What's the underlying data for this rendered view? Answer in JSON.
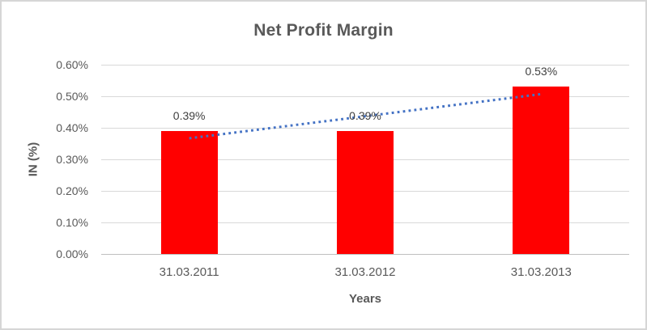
{
  "chart_data": {
    "type": "bar",
    "title": "Net Profit Margin",
    "xlabel": "Years",
    "ylabel": "IN (%)",
    "categories": [
      "31.03.2011",
      "31.03.2012",
      "31.03.2013"
    ],
    "values": [
      0.39,
      0.39,
      0.53
    ],
    "data_labels": [
      "0.39%",
      "0.39%",
      "0.53%"
    ],
    "ylim": [
      0,
      0.6
    ],
    "yticks": {
      "values": [
        0,
        0.1,
        0.2,
        0.3,
        0.4,
        0.5,
        0.6
      ],
      "labels": [
        "0.00%",
        "0.10%",
        "0.20%",
        "0.30%",
        "0.40%",
        "0.50%",
        "0.60%"
      ]
    },
    "grid": true,
    "legend": "none",
    "bar_color": "#FF0000",
    "trendline": {
      "type": "linear",
      "style": "dotted",
      "color": "#4472C4",
      "start_value": 0.3667,
      "end_value": 0.5067
    },
    "colors": {
      "title_text": "#595959",
      "axis_text": "#595959",
      "data_label_text": "#404040",
      "gridline": "#D9D9D9",
      "axis_line": "#BFBFBF",
      "frame_border": "#D6D6D6",
      "background": "#FFFFFF"
    }
  }
}
